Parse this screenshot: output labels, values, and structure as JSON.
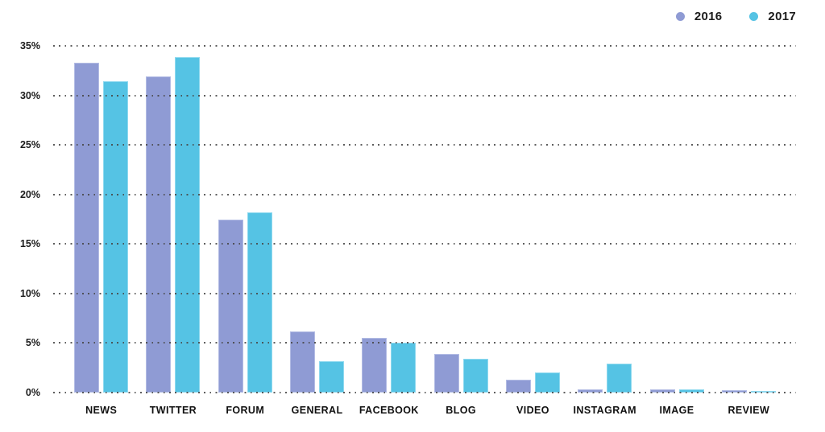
{
  "chart_data": {
    "type": "bar",
    "title": "",
    "xlabel": "",
    "ylabel": "",
    "categories": [
      "NEWS",
      "TWITTER",
      "FORUM",
      "GENERAL",
      "FACEBOOK",
      "BLOG",
      "VIDEO",
      "INSTAGRAM",
      "IMAGE",
      "REVIEW"
    ],
    "series": [
      {
        "name": "2016",
        "color": "#8f9bd4",
        "border_color": "#b3bce4",
        "values": [
          33.3,
          31.9,
          17.5,
          6.2,
          5.5,
          3.9,
          1.3,
          0.35,
          0.3,
          0.25
        ]
      },
      {
        "name": "2017",
        "color": "#55c3e4",
        "border_color": "#8fd9ef",
        "values": [
          31.4,
          33.9,
          18.2,
          3.2,
          5.0,
          3.4,
          2.0,
          2.9,
          0.3,
          0.15
        ]
      }
    ],
    "ylim": [
      0,
      35
    ],
    "ytick_step": 5,
    "yticks": [
      "0%",
      "5%",
      "10%",
      "15%",
      "20%",
      "25%",
      "30%",
      "35%"
    ],
    "grid": "horizontal dotted lines drawn over bars",
    "legend_position": "top-right",
    "colors": {
      "background": "#ffffff",
      "gridline": "#474747",
      "axis_text": "#1c1c1c"
    }
  }
}
